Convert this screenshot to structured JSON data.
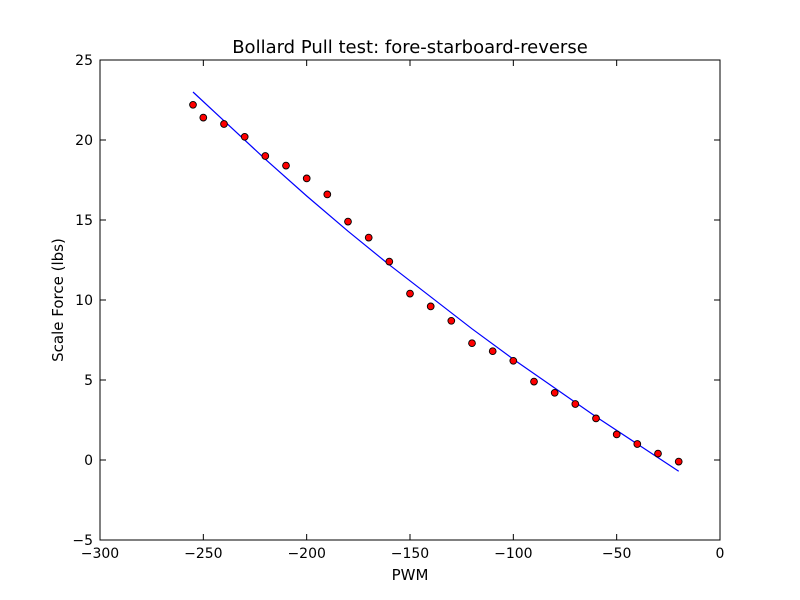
{
  "chart_data": {
    "type": "scatter",
    "title": "Bollard Pull test: fore-starboard-reverse",
    "xlabel": "PWM",
    "ylabel": "Scale Force (lbs)",
    "xlim": [
      -300,
      0
    ],
    "ylim": [
      -5,
      25
    ],
    "x_ticks": [
      -300,
      -250,
      -200,
      -150,
      -100,
      -50,
      0
    ],
    "y_ticks": [
      -5,
      0,
      5,
      10,
      15,
      20,
      25
    ],
    "x_tick_labels": [
      "−300",
      "−250",
      "−200",
      "−150",
      "−100",
      "−50",
      "0"
    ],
    "y_tick_labels": [
      "−5",
      "0",
      "5",
      "10",
      "15",
      "20",
      "25"
    ],
    "grid": false,
    "legend": "none",
    "series": [
      {
        "kind": "scatter",
        "color": "#ff0000",
        "edge_color": "#000000",
        "x": [
          -255,
          -250,
          -240,
          -230,
          -220,
          -210,
          -200,
          -190,
          -180,
          -170,
          -160,
          -150,
          -140,
          -130,
          -120,
          -110,
          -100,
          -90,
          -80,
          -70,
          -60,
          -50,
          -40,
          -30,
          -20
        ],
        "y": [
          22.2,
          21.4,
          21.0,
          20.2,
          19.0,
          18.4,
          17.6,
          16.6,
          14.9,
          13.9,
          12.4,
          10.4,
          9.6,
          8.7,
          7.3,
          6.8,
          6.2,
          4.9,
          4.2,
          3.5,
          2.6,
          1.6,
          1.0,
          0.4,
          -0.1
        ]
      },
      {
        "kind": "line",
        "color": "#0000ff",
        "x": [
          -255,
          -240,
          -220,
          -200,
          -180,
          -160,
          -140,
          -120,
          -100,
          -80,
          -60,
          -40,
          -20
        ],
        "y": [
          23.0,
          21.2,
          18.8,
          16.5,
          14.3,
          12.2,
          10.2,
          8.2,
          6.3,
          4.5,
          2.7,
          1.0,
          -0.7
        ]
      }
    ]
  }
}
